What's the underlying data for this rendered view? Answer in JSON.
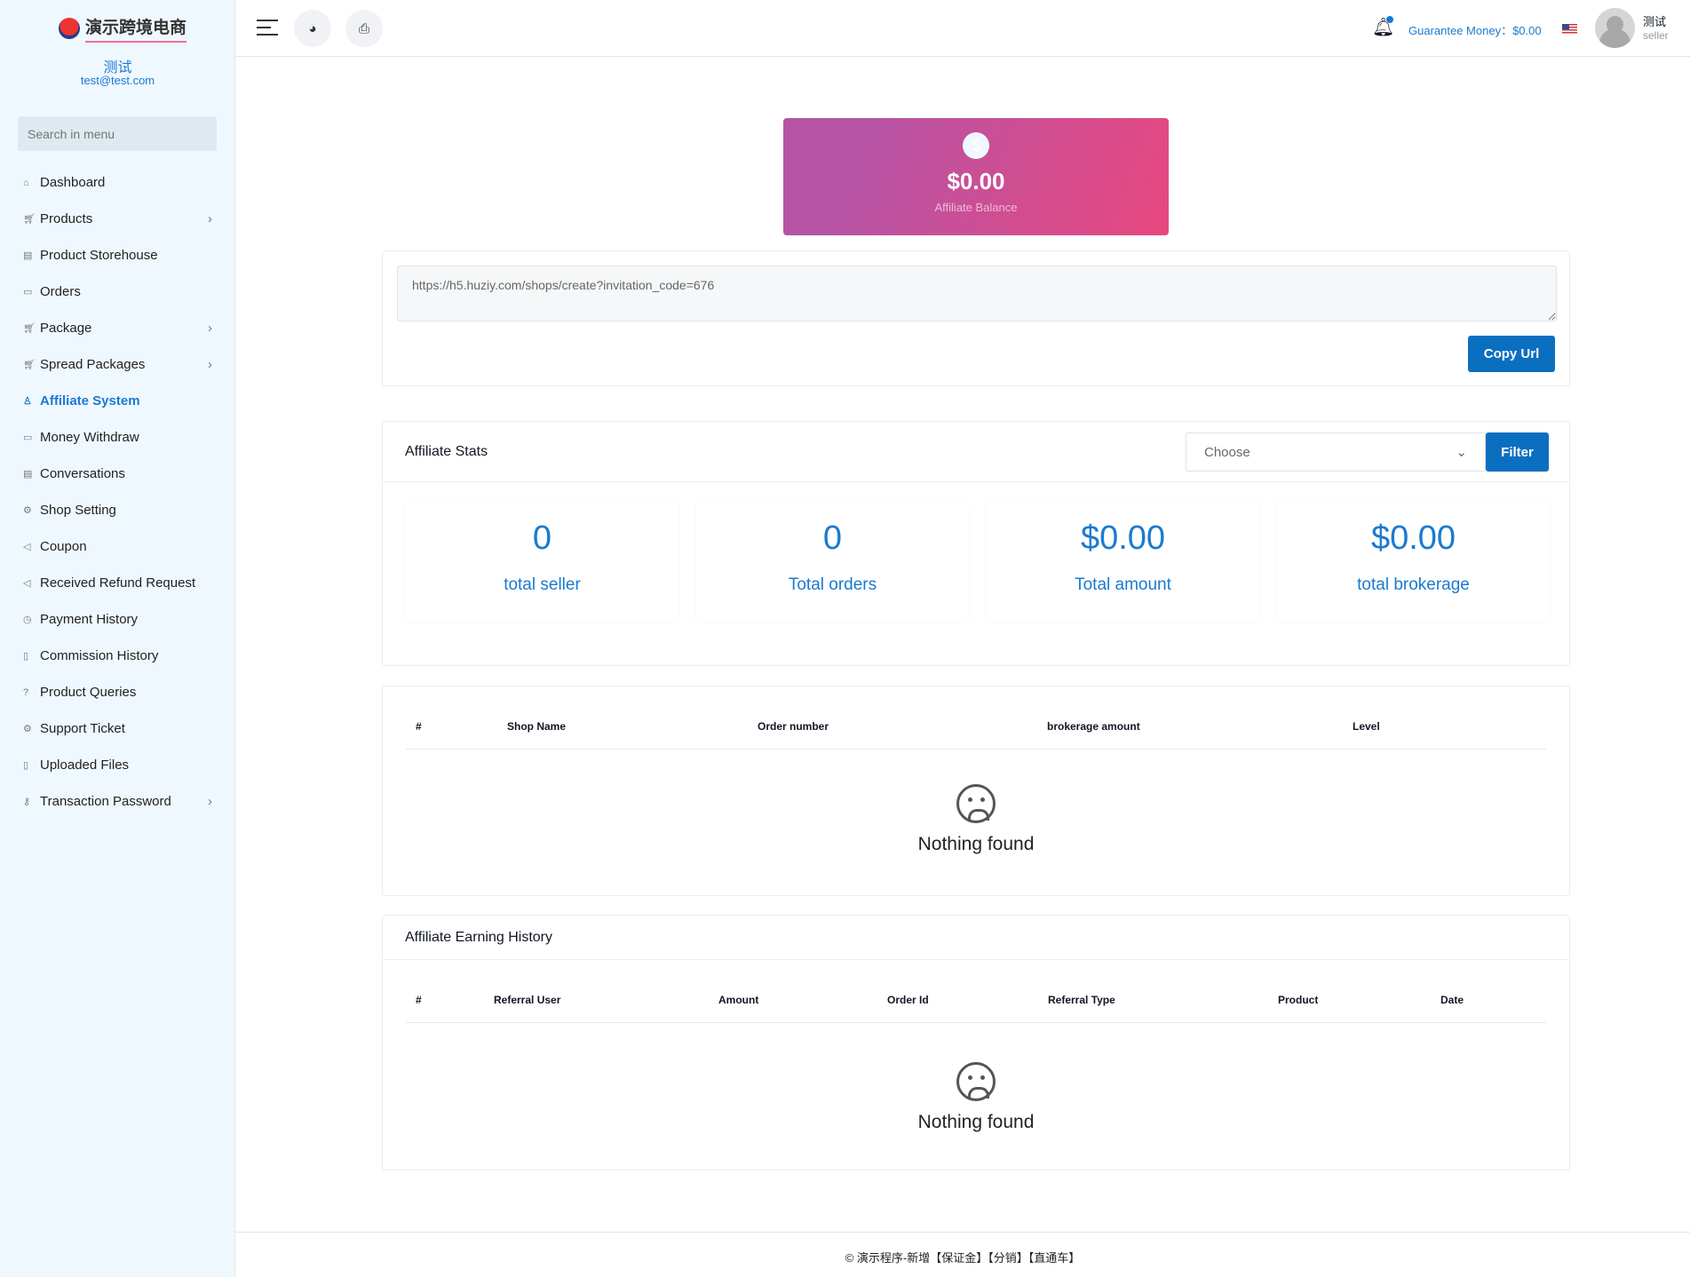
{
  "sidebar": {
    "logo_text": "演示跨境电商",
    "user_name": "测试",
    "user_email": "test@test.com",
    "search_placeholder": "Search in menu",
    "items": [
      {
        "label": "Dashboard",
        "icon": "home-icon",
        "sub": false
      },
      {
        "label": "Products",
        "icon": "cart-icon",
        "sub": true
      },
      {
        "label": "Product Storehouse",
        "icon": "storehouse-icon",
        "sub": false
      },
      {
        "label": "Orders",
        "icon": "money-icon",
        "sub": false
      },
      {
        "label": "Package",
        "icon": "cart-icon",
        "sub": true
      },
      {
        "label": "Spread Packages",
        "icon": "cart-icon",
        "sub": true
      },
      {
        "label": "Affiliate System",
        "icon": "user-icon",
        "sub": false,
        "active": true
      },
      {
        "label": "Money Withdraw",
        "icon": "money-icon",
        "sub": false
      },
      {
        "label": "Conversations",
        "icon": "chat-icon",
        "sub": false
      },
      {
        "label": "Shop Setting",
        "icon": "gear-icon",
        "sub": false
      },
      {
        "label": "Coupon",
        "icon": "megaphone-icon",
        "sub": false
      },
      {
        "label": "Received Refund Request",
        "icon": "refund-icon",
        "sub": false
      },
      {
        "label": "Payment History",
        "icon": "history-icon",
        "sub": false
      },
      {
        "label": "Commission History",
        "icon": "file-icon",
        "sub": false
      },
      {
        "label": "Product Queries",
        "icon": "question-icon",
        "sub": false
      },
      {
        "label": "Support Ticket",
        "icon": "support-icon",
        "sub": false
      },
      {
        "label": "Uploaded Files",
        "icon": "folder-icon",
        "sub": false
      },
      {
        "label": "Transaction Password",
        "icon": "key-icon",
        "sub": true
      }
    ]
  },
  "topbar": {
    "guarantee_label": "Guarantee Money：$0.00",
    "profile_name": "测试",
    "profile_role": "seller"
  },
  "balance": {
    "amount": "$0.00",
    "label": "Affiliate Balance",
    "icon": "dollar-icon"
  },
  "referral": {
    "url": "https://h5.huziy.com/shops/create?invitation_code=676",
    "copy_label": "Copy Url"
  },
  "stats": {
    "title": "Affiliate Stats",
    "select_value": "Choose",
    "filter_label": "Filter",
    "items": [
      {
        "value": "0",
        "label": "total seller"
      },
      {
        "value": "0",
        "label": "Total orders"
      },
      {
        "value": "$0.00",
        "label": "Total amount"
      },
      {
        "value": "$0.00",
        "label": "total brokerage"
      }
    ]
  },
  "table1": {
    "columns": [
      "#",
      "Shop Name",
      "Order number",
      "brokerage amount",
      "Level"
    ],
    "empty": "Nothing found"
  },
  "table2": {
    "title": "Affiliate Earning History",
    "columns": [
      "#",
      "Referral User",
      "Amount",
      "Order Id",
      "Referral Type",
      "Product",
      "Date"
    ],
    "empty": "Nothing found"
  },
  "footer": {
    "text": "© 演示程序-新增【保证金】【分销】【直通车】"
  }
}
